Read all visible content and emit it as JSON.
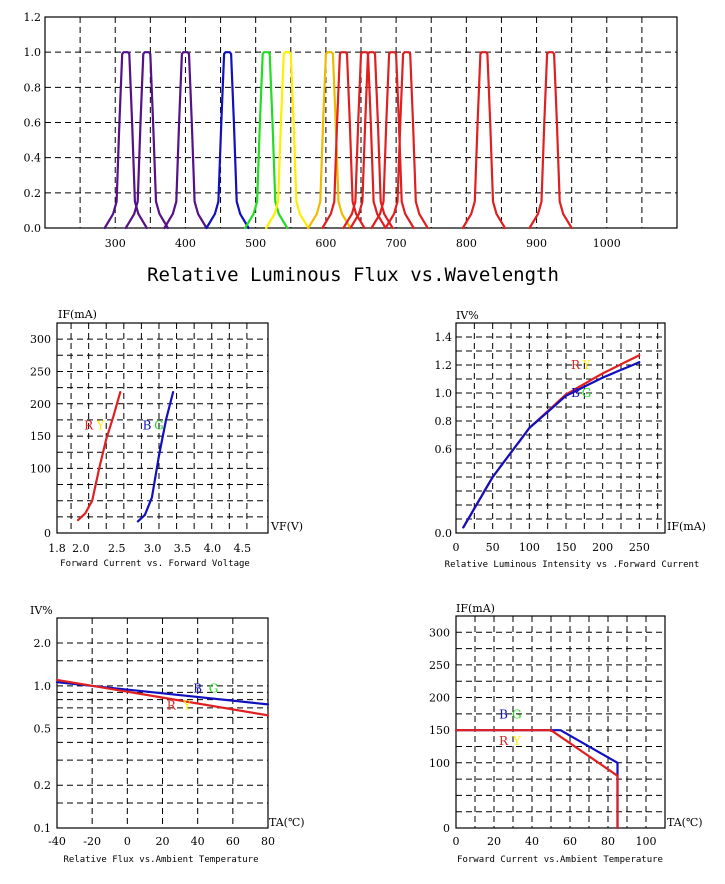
{
  "colors": {
    "red": "#e02020",
    "blue": "#1010c0",
    "green": "#22dd22",
    "yellow": "#ffee00",
    "purple": "#551188",
    "amber": "#eebb00"
  },
  "chart_data": [
    {
      "type": "line",
      "title": "Relative Luminous Flux vs.Wavelength",
      "xlabel": "",
      "ylabel": "",
      "xlim": [
        200,
        1100
      ],
      "ylim": [
        0,
        1.2
      ],
      "xticks": [
        "300",
        "400",
        "500",
        "600",
        "700",
        "800",
        "900",
        "1000"
      ],
      "yticks": [
        "0.0",
        "0.2",
        "0.4",
        "0.6",
        "0.8",
        "1.0",
        "1.2"
      ],
      "grid": true,
      "series": [
        {
          "peak": 315,
          "color": "purple"
        },
        {
          "peak": 345,
          "color": "purple"
        },
        {
          "peak": 400,
          "color": "purple"
        },
        {
          "peak": 460,
          "color": "blue"
        },
        {
          "peak": 515,
          "color": "green"
        },
        {
          "peak": 545,
          "color": "yellow"
        },
        {
          "peak": 605,
          "color": "amber"
        },
        {
          "peak": 625,
          "color": "red"
        },
        {
          "peak": 655,
          "color": "red"
        },
        {
          "peak": 665,
          "color": "red"
        },
        {
          "peak": 695,
          "color": "red"
        },
        {
          "peak": 715,
          "color": "red"
        },
        {
          "peak": 825,
          "color": "red"
        },
        {
          "peak": 920,
          "color": "red"
        }
      ]
    },
    {
      "type": "line",
      "title": "Forward Current vs. Forward Voltage",
      "xlabel": "VF(V)",
      "ylabel": "IF(mA)",
      "xlim": [
        1.8,
        4.8
      ],
      "ylim": [
        0,
        325
      ],
      "xticks": [
        "1.8",
        "2.0",
        "2.5",
        "3.0",
        "3.5",
        "4.0",
        "4.5"
      ],
      "yticks": [
        "0",
        "100",
        "150",
        "200",
        "250",
        "300"
      ],
      "grid": true,
      "series": [
        {
          "labels": [
            "R",
            "Y"
          ],
          "color": "red",
          "x": [
            2.1,
            2.2,
            2.3,
            2.4,
            2.5,
            2.6,
            2.7
          ],
          "y": [
            20,
            30,
            50,
            100,
            145,
            180,
            218
          ]
        },
        {
          "labels": [
            "B",
            "G"
          ],
          "color": "blue",
          "x": [
            2.95,
            3.05,
            3.15,
            3.25,
            3.35,
            3.45
          ],
          "y": [
            18,
            28,
            55,
            120,
            175,
            218
          ]
        }
      ],
      "annotations": [
        {
          "text": "R",
          "color": "red",
          "x": 2.25,
          "y": 160
        },
        {
          "text": "Y",
          "color": "yellow",
          "x": 2.42,
          "y": 160
        },
        {
          "text": "B",
          "color": "blue",
          "x": 3.08,
          "y": 160
        },
        {
          "text": "G",
          "color": "green",
          "x": 3.25,
          "y": 160
        }
      ]
    },
    {
      "type": "line",
      "title": "Relative Luminous Intensity vs .Forward Current",
      "xlabel": "IF(mA)",
      "ylabel": "IV%",
      "xlim": [
        0,
        285
      ],
      "ylim": [
        0,
        1.5
      ],
      "xticks": [
        "0",
        "50",
        "100",
        "150",
        "200",
        "250"
      ],
      "yticks": [
        "0.0",
        "0.6",
        "0.8",
        "1.0",
        "1.2",
        "1.4"
      ],
      "grid": true,
      "series": [
        {
          "labels": [
            "R",
            "Y"
          ],
          "color": "red",
          "x": [
            10,
            50,
            100,
            150,
            200,
            250
          ],
          "y": [
            0.04,
            0.4,
            0.75,
            0.99,
            1.14,
            1.27
          ]
        },
        {
          "labels": [
            "B",
            "G"
          ],
          "color": "blue",
          "x": [
            10,
            50,
            100,
            150,
            200,
            250
          ],
          "y": [
            0.04,
            0.4,
            0.75,
            0.98,
            1.11,
            1.22
          ]
        }
      ],
      "annotations": [
        {
          "text": "R",
          "color": "red",
          "x": 163,
          "y": 1.17
        },
        {
          "text": "Y",
          "color": "yellow",
          "x": 178,
          "y": 1.17
        },
        {
          "text": "B",
          "color": "blue",
          "x": 163,
          "y": 0.97
        },
        {
          "text": "G",
          "color": "green",
          "x": 178,
          "y": 0.97
        }
      ]
    },
    {
      "type": "line",
      "title": "Relative Flux vs.Ambient Temperature",
      "xlabel": "TA(℃)",
      "ylabel": "IV%",
      "xscale_range": [
        -40,
        80
      ],
      "ylim": [
        0.1,
        3.0
      ],
      "yscale": "log",
      "xticks": [
        "-40",
        "-20",
        "0",
        "20",
        "40",
        "60",
        "80"
      ],
      "yticks": [
        "0.1",
        "0.2",
        "0.5",
        "1.0",
        "2.0"
      ],
      "grid": true,
      "series": [
        {
          "labels": [
            "B",
            "G"
          ],
          "color": "blue",
          "x": [
            -40,
            80
          ],
          "y": [
            1.06,
            0.74
          ]
        },
        {
          "labels": [
            "R",
            "Y"
          ],
          "color": "red",
          "x": [
            -40,
            80
          ],
          "y": [
            1.1,
            0.62
          ]
        }
      ],
      "annotations": [
        {
          "text": "B",
          "color": "blue",
          "x": 40,
          "y": 0.9
        },
        {
          "text": "G",
          "color": "green",
          "x": 49,
          "y": 0.9
        },
        {
          "text": "R",
          "color": "red",
          "x": 25,
          "y": 0.68
        },
        {
          "text": "Y",
          "color": "yellow",
          "x": 34,
          "y": 0.68
        }
      ]
    },
    {
      "type": "line",
      "title": "Forward Current vs.Ambient Temperature",
      "xlabel": "TA(℃)",
      "ylabel": "IF(mA)",
      "xlim": [
        0,
        110
      ],
      "ylim": [
        0,
        325
      ],
      "xticks": [
        "0",
        "20",
        "40",
        "60",
        "80",
        "100"
      ],
      "yticks": [
        "0",
        "100",
        "150",
        "200",
        "250",
        "300"
      ],
      "grid": true,
      "series": [
        {
          "labels": [
            "B",
            "G"
          ],
          "color": "blue",
          "x": [
            0,
            55,
            85,
            85
          ],
          "y": [
            150,
            150,
            100,
            0
          ]
        },
        {
          "labels": [
            "R",
            "Y"
          ],
          "color": "red",
          "x": [
            0,
            50,
            85,
            85
          ],
          "y": [
            150,
            150,
            80,
            0
          ]
        }
      ],
      "annotations": [
        {
          "text": "B",
          "color": "blue",
          "x": 25,
          "y": 168
        },
        {
          "text": "G",
          "color": "green",
          "x": 32,
          "y": 168
        },
        {
          "text": "R",
          "color": "red",
          "x": 25,
          "y": 127
        },
        {
          "text": "Y",
          "color": "yellow",
          "x": 32,
          "y": 127
        }
      ]
    }
  ]
}
